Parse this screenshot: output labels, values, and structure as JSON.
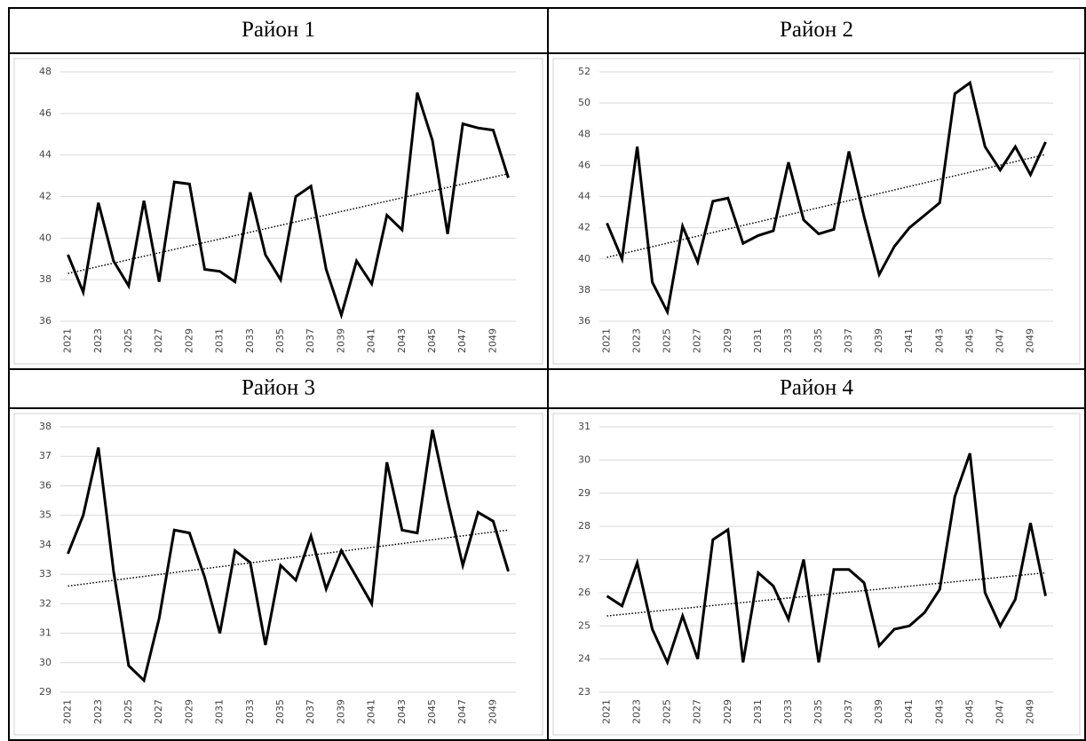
{
  "chart_data": [
    {
      "type": "line",
      "title": "Район 1",
      "color": "#000000",
      "categories": [
        "2021",
        null,
        "2023",
        null,
        "2025",
        null,
        "2027",
        null,
        "2029",
        null,
        "2031",
        null,
        "2033",
        null,
        "2035",
        null,
        "2037",
        null,
        "2039",
        null,
        "2041",
        null,
        "2043",
        null,
        "2045",
        null,
        "2047",
        null,
        "2049",
        null
      ],
      "values": [
        39.2,
        37.4,
        41.7,
        38.9,
        37.7,
        41.8,
        37.9,
        42.7,
        42.6,
        38.5,
        38.4,
        37.9,
        42.2,
        39.2,
        38.0,
        42.0,
        42.5,
        38.5,
        36.3,
        38.9,
        37.8,
        41.1,
        40.4,
        47.0,
        44.7,
        40.2,
        45.5,
        45.3,
        45.2,
        42.9
      ],
      "trend": [
        38.3,
        43.1
      ],
      "ylim": [
        36,
        48
      ],
      "yticks": [
        36,
        38,
        40,
        42,
        44,
        46,
        48
      ],
      "grid": true
    },
    {
      "type": "line",
      "title": "Район 2",
      "color": "#000000",
      "categories": [
        "2021",
        null,
        "2023",
        null,
        "2025",
        null,
        "2027",
        null,
        "2029",
        null,
        "2031",
        null,
        "2033",
        null,
        "2035",
        null,
        "2037",
        null,
        "2039",
        null,
        "2041",
        null,
        "2043",
        null,
        "2045",
        null,
        "2047",
        null,
        "2049",
        null
      ],
      "values": [
        42.3,
        40.0,
        47.2,
        38.5,
        36.6,
        42.1,
        39.8,
        43.7,
        43.9,
        41.0,
        41.5,
        41.8,
        46.2,
        42.5,
        41.6,
        41.9,
        46.9,
        42.7,
        39.0,
        40.8,
        42.0,
        42.8,
        43.6,
        50.6,
        51.3,
        47.2,
        45.7,
        47.2,
        45.4,
        47.5
      ],
      "trend": [
        40.1,
        46.7
      ],
      "ylim": [
        36,
        52
      ],
      "yticks": [
        36,
        38,
        40,
        42,
        44,
        46,
        48,
        50,
        52
      ],
      "grid": true
    },
    {
      "type": "line",
      "title": "Район 3",
      "color": "#000000",
      "categories": [
        "2021",
        null,
        "2023",
        null,
        "2025",
        null,
        "2027",
        null,
        "2029",
        null,
        "2031",
        null,
        "2033",
        null,
        "2035",
        null,
        "2037",
        null,
        "2039",
        null,
        "2041",
        null,
        "2043",
        null,
        "2045",
        null,
        "2047",
        null,
        "2049",
        null
      ],
      "values": [
        33.7,
        35.0,
        37.3,
        33.1,
        29.9,
        29.4,
        31.5,
        34.5,
        34.4,
        32.9,
        31.0,
        33.8,
        33.4,
        30.6,
        33.3,
        32.8,
        34.3,
        32.5,
        33.8,
        32.9,
        32.0,
        36.8,
        34.5,
        34.4,
        37.9,
        35.5,
        33.3,
        35.1,
        34.8,
        33.1
      ],
      "trend": [
        32.6,
        34.5
      ],
      "ylim": [
        29,
        38
      ],
      "yticks": [
        29,
        30,
        31,
        32,
        33,
        34,
        35,
        36,
        37,
        38
      ],
      "grid": true
    },
    {
      "type": "line",
      "title": "Район 4",
      "color": "#000000",
      "categories": [
        "2021",
        null,
        "2023",
        null,
        "2025",
        null,
        "2027",
        null,
        "2029",
        null,
        "2031",
        null,
        "2033",
        null,
        "2035",
        null,
        "2037",
        null,
        "2039",
        null,
        "2041",
        null,
        "2043",
        null,
        "2045",
        null,
        "2047",
        null,
        "2049",
        null
      ],
      "values": [
        25.9,
        25.6,
        26.9,
        24.9,
        23.9,
        25.3,
        24.0,
        27.6,
        27.9,
        23.9,
        26.6,
        26.2,
        25.2,
        27.0,
        23.9,
        26.7,
        26.7,
        26.3,
        24.4,
        24.9,
        25.0,
        25.4,
        26.1,
        28.9,
        30.2,
        26.0,
        25.0,
        25.8,
        28.1,
        25.9
      ],
      "trend": [
        25.3,
        26.6
      ],
      "ylim": [
        23,
        31
      ],
      "yticks": [
        23,
        24,
        25,
        26,
        27,
        28,
        29,
        30,
        31
      ],
      "grid": true
    }
  ]
}
